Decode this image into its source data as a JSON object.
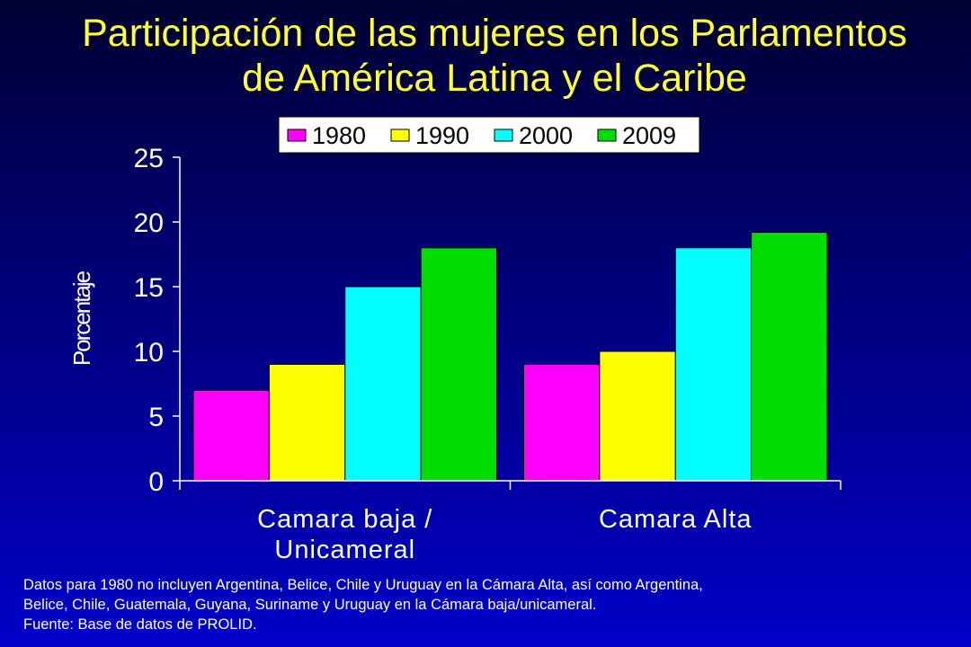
{
  "title_lines": [
    "Participación de las mujeres en los Parlamentos",
    "de América Latina y el Caribe"
  ],
  "chart_data": {
    "type": "bar",
    "categories": [
      [
        "Camara baja /",
        "Unicameral"
      ],
      [
        "Camara Alta"
      ]
    ],
    "series": [
      {
        "name": "1980",
        "color": "#ff00ff",
        "values": [
          7,
          9
        ]
      },
      {
        "name": "1990",
        "color": "#ffff00",
        "values": [
          9,
          10
        ]
      },
      {
        "name": "2000",
        "color": "#00ffff",
        "values": [
          15,
          18
        ]
      },
      {
        "name": "2009",
        "color": "#00dd00",
        "values": [
          18,
          19.2
        ]
      }
    ],
    "ylabel": "Porcentaje",
    "ylim": [
      0,
      25
    ],
    "yticks": [
      "0",
      "5",
      "10",
      "15",
      "20",
      "25"
    ],
    "grid": false,
    "legend_position": "top"
  },
  "notes": [
    "Datos para 1980 no incluyen Argentina, Belice, Chile y Uruguay en la Cámara Alta, así como Argentina,",
    "Belice, Chile, Guatemala, Guyana, Suriname y Uruguay en la Cámara baja/unicameral."
  ],
  "source": "Fuente: Base de datos de PROLID."
}
